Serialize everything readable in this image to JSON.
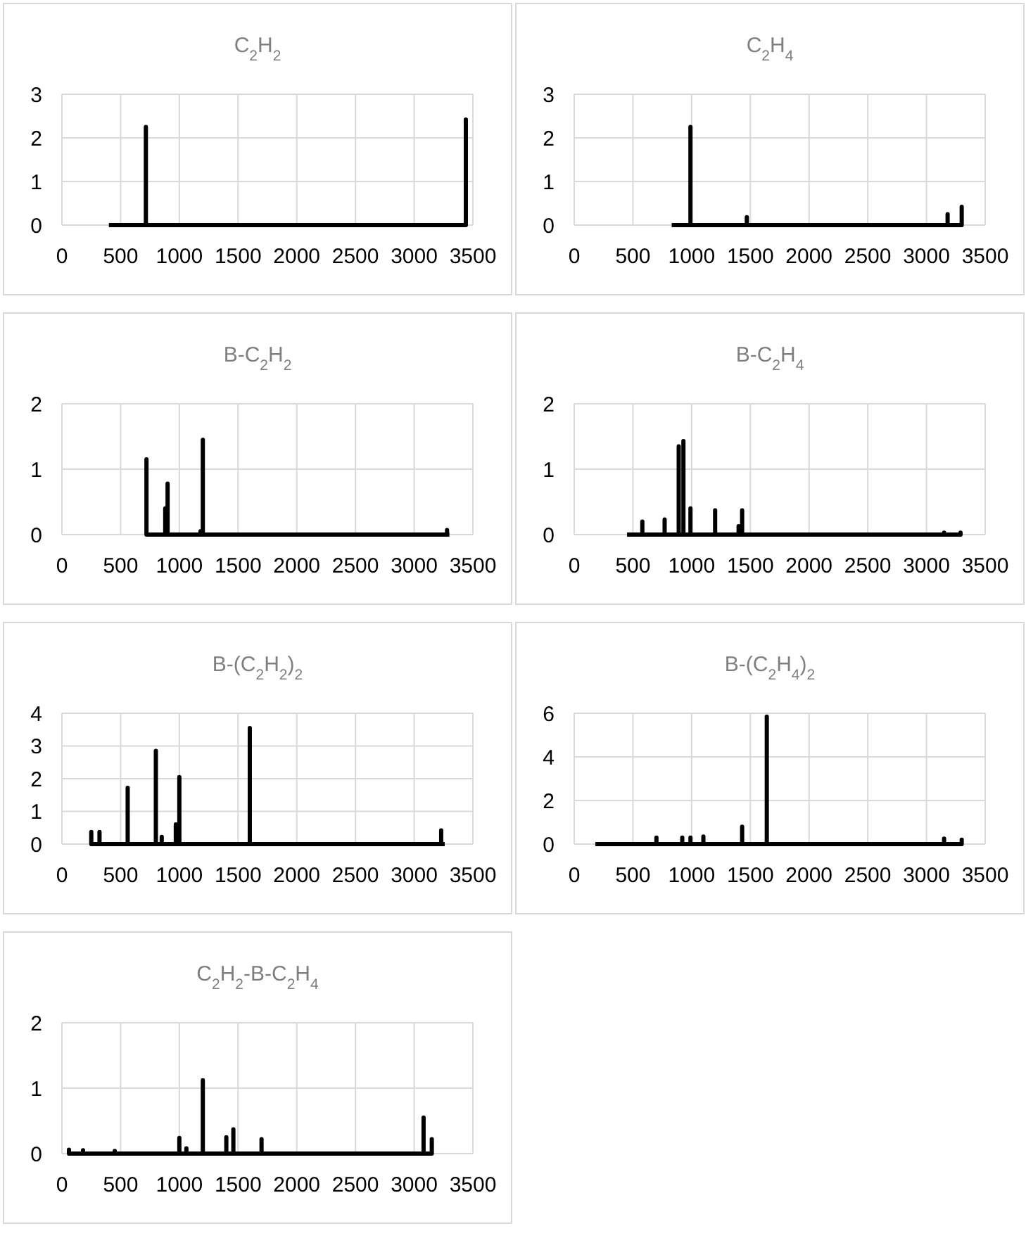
{
  "chart_data": [
    {
      "type": "line",
      "title": "C$_{2}$H$_{2}$",
      "color": "#000000",
      "grid": true,
      "xlim": [
        0,
        3500
      ],
      "xticks": [
        0,
        500,
        1000,
        1500,
        2000,
        2500,
        3000,
        3500
      ],
      "ylim": [
        0,
        3
      ],
      "yticks": [
        0,
        1,
        2,
        3
      ],
      "x": [
        400,
        715,
        715,
        715,
        3440,
        3440,
        3440
      ],
      "values": [
        0,
        0,
        2.25,
        0,
        0,
        2.42,
        0
      ]
    },
    {
      "type": "line",
      "title": "C$_{2}$H$_{4}$",
      "color": "#000000",
      "grid": true,
      "xlim": [
        0,
        3500
      ],
      "xticks": [
        0,
        500,
        1000,
        1500,
        2000,
        2500,
        3000,
        3500
      ],
      "ylim": [
        0,
        3
      ],
      "yticks": [
        0,
        1,
        2,
        3
      ],
      "x": [
        830,
        990,
        990,
        990,
        1470,
        1470,
        1470,
        3180,
        3180,
        3180,
        3300,
        3300,
        3300
      ],
      "values": [
        0,
        0,
        2.25,
        0,
        0,
        0.18,
        0,
        0,
        0.25,
        0,
        0,
        0.42,
        0
      ]
    },
    {
      "type": "line",
      "title": "B-C$_{2}$H$_{2}$",
      "color": "#000000",
      "grid": true,
      "xlim": [
        0,
        3500
      ],
      "xticks": [
        0,
        500,
        1000,
        1500,
        2000,
        2500,
        3000,
        3500
      ],
      "ylim": [
        0,
        2
      ],
      "yticks": [
        0,
        1,
        2
      ],
      "x": [
        720,
        720,
        720,
        880,
        880,
        880,
        900,
        900,
        900,
        1180,
        1180,
        1180,
        1200,
        1200,
        1200,
        3280,
        3280,
        3280,
        3300
      ],
      "values": [
        0,
        1.15,
        0,
        0,
        0.4,
        0,
        0,
        0.78,
        0,
        0,
        0.05,
        0,
        0,
        1.45,
        0,
        0,
        0.07,
        0,
        0
      ]
    },
    {
      "type": "line",
      "title": "B-C$_{2}$H$_{4}$",
      "color": "#000000",
      "grid": true,
      "xlim": [
        0,
        3500
      ],
      "xticks": [
        0,
        500,
        1000,
        1500,
        2000,
        2500,
        3000,
        3500
      ],
      "ylim": [
        0,
        2
      ],
      "yticks": [
        0,
        1,
        2
      ],
      "x": [
        450,
        580,
        580,
        580,
        770,
        770,
        770,
        890,
        890,
        890,
        930,
        930,
        930,
        990,
        990,
        990,
        1200,
        1200,
        1200,
        1400,
        1400,
        1400,
        1430,
        1430,
        1430,
        3150,
        3150,
        3150,
        3290,
        3290,
        3290,
        3300
      ],
      "values": [
        0,
        0,
        0.2,
        0,
        0,
        0.23,
        0,
        0,
        1.35,
        0,
        0,
        1.43,
        0,
        0,
        0.4,
        0,
        0,
        0.37,
        0,
        0,
        0.13,
        0,
        0,
        0.37,
        0,
        0,
        0.03,
        0,
        0,
        0.03,
        0,
        0
      ]
    },
    {
      "type": "line",
      "title": "B-(C$_{2}$H$_{2}$)$_{2}$",
      "color": "#000000",
      "grid": true,
      "xlim": [
        0,
        3500
      ],
      "xticks": [
        0,
        500,
        1000,
        1500,
        2000,
        2500,
        3000,
        3500
      ],
      "ylim": [
        0,
        4
      ],
      "yticks": [
        0,
        1,
        2,
        3,
        4
      ],
      "x": [
        250,
        250,
        250,
        320,
        320,
        320,
        560,
        560,
        560,
        800,
        800,
        800,
        850,
        850,
        850,
        970,
        970,
        970,
        1000,
        1000,
        1000,
        1600,
        1600,
        1600,
        3230,
        3230,
        3230,
        3260
      ],
      "values": [
        0,
        0.37,
        0,
        0,
        0.37,
        0,
        0,
        1.72,
        0,
        0,
        2.85,
        0,
        0,
        0.22,
        0,
        0,
        0.6,
        0,
        0,
        2.05,
        0,
        0,
        3.55,
        0,
        0,
        0.42,
        0,
        0
      ]
    },
    {
      "type": "line",
      "title": "B-(C$_{2}$H$_{4}$)$_{2}$",
      "color": "#000000",
      "grid": true,
      "xlim": [
        0,
        3500
      ],
      "xticks": [
        0,
        500,
        1000,
        1500,
        2000,
        2500,
        3000,
        3500
      ],
      "ylim": [
        0,
        6
      ],
      "yticks": [
        0,
        2,
        4,
        6
      ],
      "x": [
        180,
        700,
        700,
        700,
        920,
        920,
        920,
        990,
        990,
        990,
        1100,
        1100,
        1100,
        1430,
        1430,
        1430,
        1640,
        1640,
        1640,
        3150,
        3150,
        3150,
        3300,
        3300,
        3300
      ],
      "values": [
        0,
        0,
        0.3,
        0,
        0,
        0.3,
        0,
        0,
        0.3,
        0,
        0,
        0.35,
        0,
        0,
        0.8,
        0,
        0,
        5.85,
        0,
        0,
        0.25,
        0,
        0,
        0.2,
        0
      ]
    },
    {
      "type": "line",
      "title": "C$_{2}$H$_{2}$-B-C$_{2}$H$_{4}$",
      "color": "#000000",
      "grid": true,
      "xlim": [
        0,
        3500
      ],
      "xticks": [
        0,
        500,
        1000,
        1500,
        2000,
        2500,
        3000,
        3500
      ],
      "ylim": [
        0,
        2
      ],
      "yticks": [
        0,
        1,
        2
      ],
      "x": [
        50,
        60,
        60,
        60,
        180,
        180,
        180,
        450,
        450,
        450,
        1000,
        1000,
        1000,
        1060,
        1060,
        1060,
        1200,
        1200,
        1200,
        1400,
        1400,
        1400,
        1460,
        1460,
        1460,
        1700,
        1700,
        1700,
        3080,
        3080,
        3080,
        3150,
        3150,
        3150
      ],
      "values": [
        0,
        0,
        0.06,
        0,
        0,
        0.05,
        0,
        0,
        0.04,
        0,
        0,
        0.24,
        0,
        0,
        0.08,
        0,
        0,
        1.12,
        0,
        0,
        0.25,
        0,
        0,
        0.37,
        0,
        0,
        0.22,
        0,
        0,
        0.55,
        0,
        0,
        0.22,
        0
      ]
    }
  ]
}
